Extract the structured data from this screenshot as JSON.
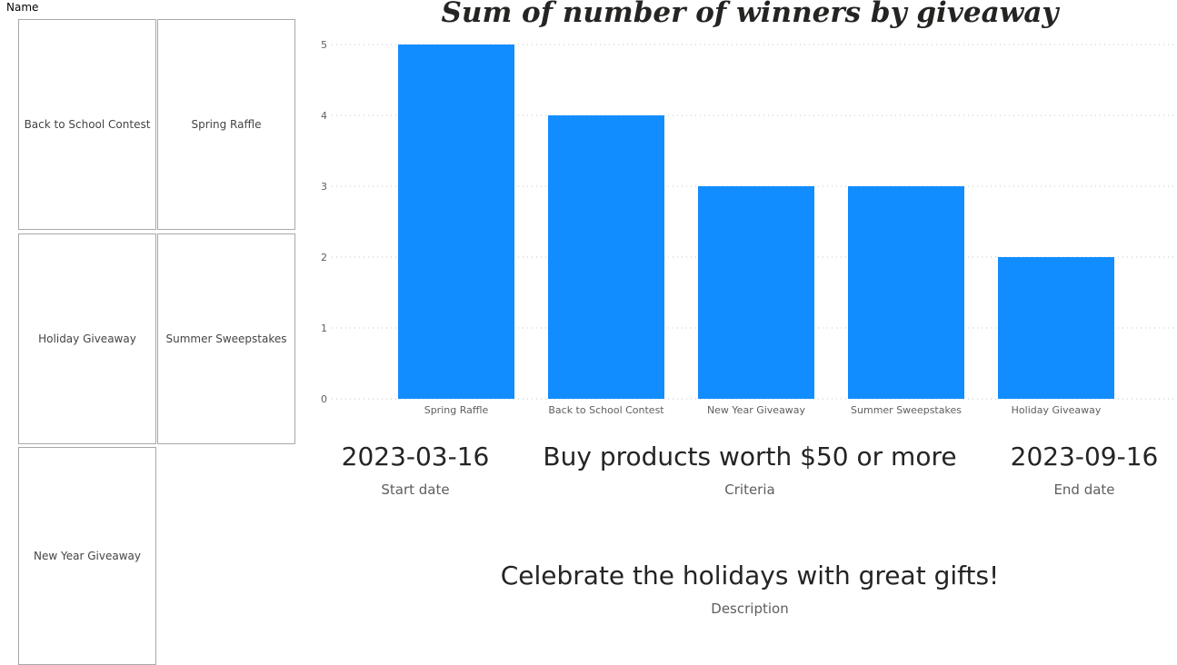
{
  "slicer": {
    "title": "Name",
    "items": [
      {
        "label": "Back to School Contest"
      },
      {
        "label": "Spring Raffle"
      },
      {
        "label": "Holiday Giveaway"
      },
      {
        "label": "Summer Sweepstakes"
      },
      {
        "label": "New Year Giveaway"
      }
    ]
  },
  "chart_data": {
    "type": "bar",
    "title": "Sum of number of winners by giveaway",
    "categories": [
      "Spring Raffle",
      "Back to School Contest",
      "New Year Giveaway",
      "Summer Sweepstakes",
      "Holiday Giveaway"
    ],
    "values": [
      5,
      4,
      3,
      3,
      2
    ],
    "ylim": [
      0,
      5
    ],
    "yticks": [
      0,
      1,
      2,
      3,
      4,
      5
    ],
    "xlabel": "",
    "ylabel": "",
    "grid": true,
    "color": "#118DFF"
  },
  "cards": {
    "start": {
      "value": "2023-03-16",
      "label": "Start date"
    },
    "criteria": {
      "value": "Buy products worth $50 or more",
      "label": "Criteria"
    },
    "end": {
      "value": "2023-09-16",
      "label": "End date"
    },
    "description": {
      "value": "Celebrate the holidays with great gifts!",
      "label": "Description"
    }
  }
}
